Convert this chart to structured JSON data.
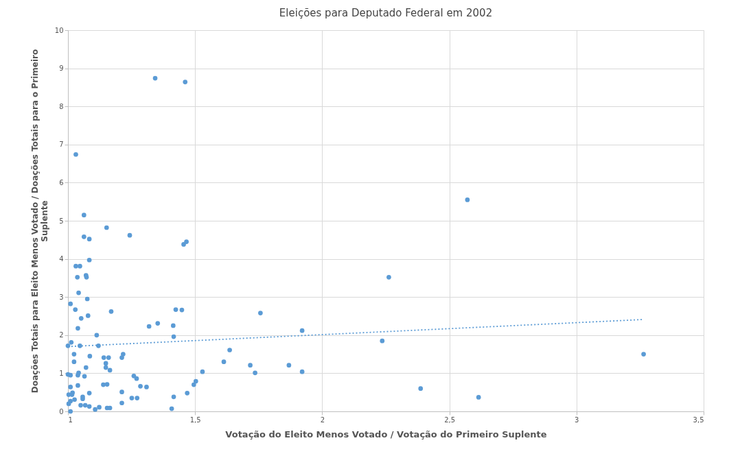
{
  "chart_data": {
    "type": "scatter",
    "title": "Eleições para Deputado Federal em 2002",
    "xlabel": "Votação do Eleito Menos Votado / Votação do Primeiro Suplente",
    "ylabel": "Doações Totais para Eleito Menos Votado / Doações Totais para o Primeiro Suplente",
    "xlim": [
      1,
      3.5
    ],
    "xticks": [
      1,
      {
        "value": 1.5,
        "label": "1,5"
      },
      2,
      {
        "value": 2.5,
        "label": "2,5"
      },
      3,
      {
        "value": 3.5,
        "label": "3,5"
      }
    ],
    "ylim": [
      0,
      10
    ],
    "yticks": [
      0,
      1,
      2,
      3,
      4,
      5,
      6,
      7,
      8,
      9,
      10
    ],
    "grid": true,
    "series": [
      {
        "marker": "circle",
        "color": "#5b9bd5",
        "x": [
          1.343,
          1.461,
          1.031,
          2.571,
          1.063,
          1.152,
          1.063,
          1.084,
          1.243,
          1.466,
          1.455,
          1.084,
          1.031,
          1.047,
          1.071,
          1.073,
          1.037,
          2.262,
          1.042,
          1.076,
          1.01,
          1.029,
          1.424,
          1.448,
          1.17,
          1.757,
          1.079,
          1.052,
          1.353,
          1.319,
          1.414,
          1.039,
          1.921,
          1.113,
          1.416,
          2.236,
          1.0,
          1.013,
          1.047,
          1.12,
          1.024,
          1.024,
          1.086,
          1.071,
          1.141,
          1.16,
          1.149,
          1.149,
          1.165,
          1.212,
          1.217,
          1.0,
          1.01,
          1.039,
          1.042,
          1.065,
          1.259,
          1.27,
          1.285,
          1.01,
          1.039,
          1.018,
          1.003,
          1.016,
          1.084,
          1.139,
          1.154,
          1.058,
          1.058,
          1.212,
          1.026,
          1.01,
          1.003,
          1.251,
          1.272,
          1.212,
          1.05,
          1.068,
          1.084,
          1.107,
          1.123,
          1.154,
          1.165,
          1.01,
          1.529,
          1.503,
          1.495,
          1.309,
          1.416,
          1.469,
          1.408,
          1.636,
          1.613,
          1.717,
          1.736,
          1.869,
          1.921,
          2.387,
          2.615,
          3.264
        ],
        "values": [
          8.74,
          8.64,
          6.74,
          5.55,
          5.15,
          4.82,
          4.58,
          4.52,
          4.62,
          4.45,
          4.38,
          3.97,
          3.81,
          3.81,
          3.57,
          3.52,
          3.52,
          3.52,
          3.11,
          2.95,
          2.82,
          2.67,
          2.67,
          2.66,
          2.62,
          2.58,
          2.51,
          2.44,
          2.31,
          2.23,
          2.25,
          2.18,
          2.12,
          2.0,
          1.96,
          1.85,
          1.72,
          1.81,
          1.72,
          1.72,
          1.5,
          1.3,
          1.45,
          1.15,
          1.41,
          1.41,
          1.26,
          1.15,
          1.08,
          1.41,
          1.5,
          0.97,
          0.95,
          0.95,
          1.01,
          0.92,
          0.93,
          0.86,
          0.66,
          0.64,
          0.68,
          0.49,
          0.44,
          0.44,
          0.48,
          0.7,
          0.71,
          0.38,
          0.33,
          0.51,
          0.31,
          0.27,
          0.2,
          0.35,
          0.35,
          0.22,
          0.16,
          0.16,
          0.13,
          0.05,
          0.11,
          0.09,
          0.09,
          0.0,
          1.04,
          0.79,
          0.7,
          0.64,
          0.38,
          0.48,
          0.07,
          1.61,
          1.3,
          1.21,
          1.01,
          1.21,
          1.04,
          0.6,
          0.37,
          1.5
        ]
      },
      {
        "type": "line",
        "color": "#5b9bd5",
        "line_style": "dotted",
        "x": [
          1.0,
          3.264
        ],
        "values": [
          1.7,
          2.41
        ]
      }
    ]
  }
}
